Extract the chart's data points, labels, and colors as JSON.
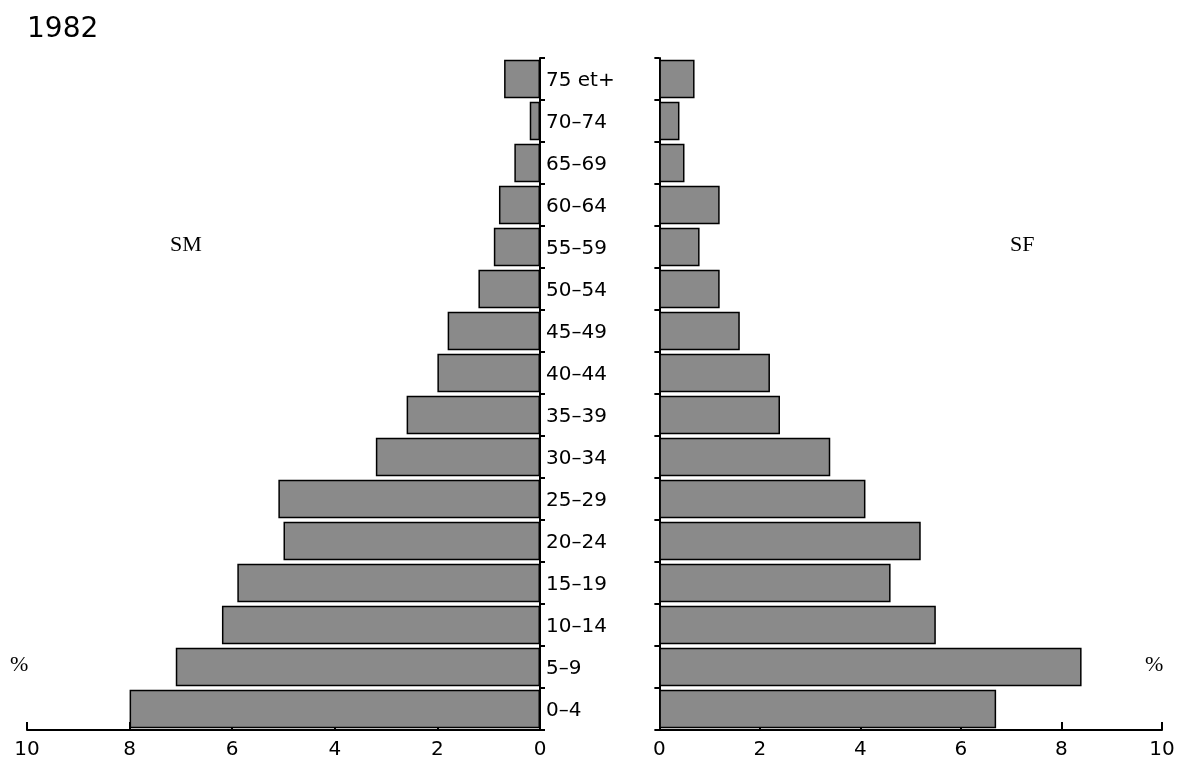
{
  "chart_data": [
    {
      "type": "bar",
      "title": "1982",
      "orientation": "horizontal",
      "xlabel": "%",
      "categories": [
        "75 et+",
        "70–74",
        "65–69",
        "60–64",
        "55–59",
        "50–54",
        "45–49",
        "40–44",
        "35–39",
        "30–34",
        "25–29",
        "20–24",
        "15–19",
        "10–14",
        "5–9",
        "0–4"
      ],
      "series": [
        {
          "name": "SM",
          "color": "#8a8a8a",
          "values": [
            0.7,
            0.2,
            0.5,
            0.8,
            0.9,
            1.2,
            1.8,
            2.0,
            2.6,
            3.2,
            5.1,
            5.0,
            5.9,
            6.2,
            7.1,
            8.0
          ]
        }
      ],
      "xlim": [
        10,
        0
      ],
      "xticks": [
        10,
        8,
        6,
        4,
        2,
        0
      ],
      "grid": false,
      "legend": false
    },
    {
      "type": "bar",
      "orientation": "horizontal",
      "xlabel": "%",
      "categories": [
        null,
        null,
        null,
        null,
        null,
        null,
        null,
        null,
        null,
        null,
        null,
        null,
        null,
        null,
        null,
        null
      ],
      "series": [
        {
          "name": "SF",
          "color": "#8a8a8a",
          "values": [
            0.7,
            0.4,
            0.5,
            1.2,
            0.8,
            1.2,
            1.6,
            2.2,
            2.4,
            3.4,
            4.1,
            5.2,
            4.6,
            5.5,
            8.4,
            6.7
          ]
        }
      ],
      "xlim": [
        0,
        10
      ],
      "xticks": [
        0,
        2,
        4,
        6,
        8,
        10
      ],
      "grid": false,
      "legend": false,
      "tick_labels": "x"
    }
  ]
}
